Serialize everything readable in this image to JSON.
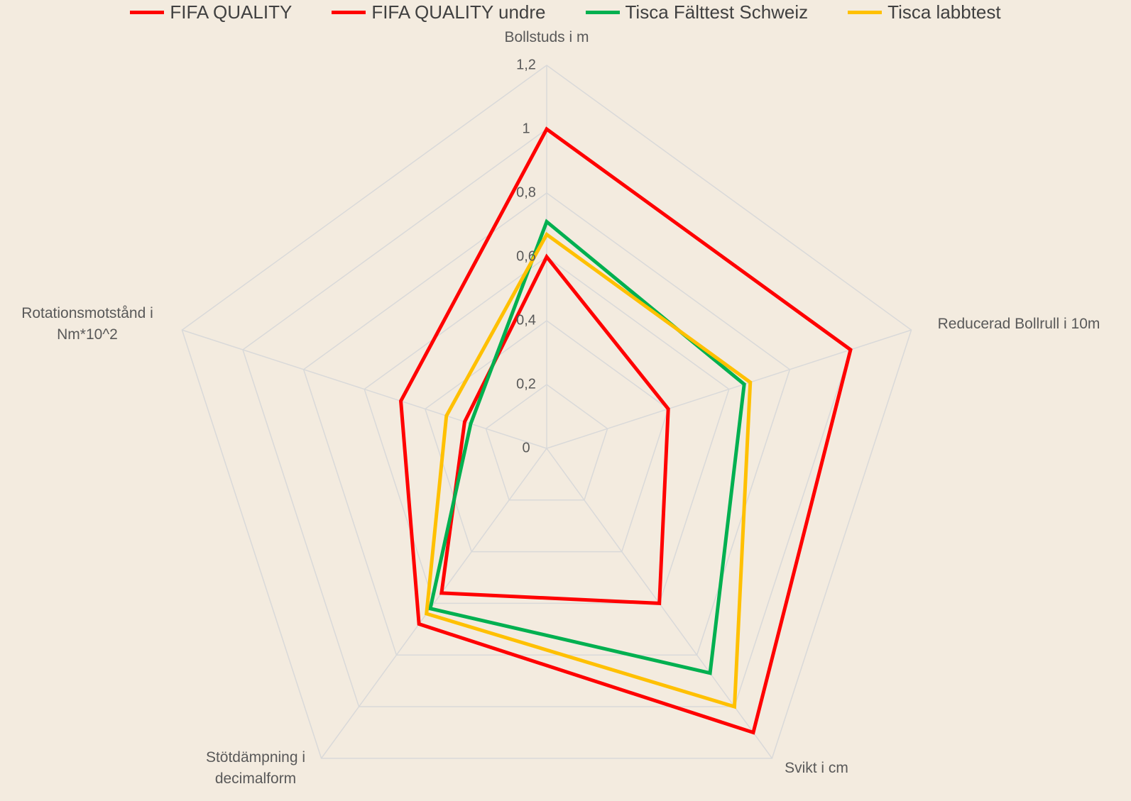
{
  "chart_data": {
    "type": "radar",
    "categories": [
      "Bollstuds i m",
      "Reducerad Bollrull i 10m",
      "Svikt i cm",
      "Stötdämpning i decimalform",
      "Rotationsmotstånd i Nm*10^2"
    ],
    "series": [
      {
        "name": "FIFA QUALITY",
        "color": "#ff0000",
        "values": [
          1.0,
          1.0,
          1.1,
          0.68,
          0.48
        ]
      },
      {
        "name": "FIFA QUALITY undre",
        "color": "#ff0000",
        "values": [
          0.6,
          0.4,
          0.6,
          0.56,
          0.27
        ]
      },
      {
        "name": "Tisca Fälttest Schweiz",
        "color": "#00b050",
        "values": [
          0.71,
          0.65,
          0.87,
          0.62,
          0.25
        ]
      },
      {
        "name": "Tisca labbtest",
        "color": "#ffc000",
        "values": [
          0.67,
          0.67,
          1.0,
          0.64,
          0.33
        ]
      }
    ],
    "ylim": [
      0,
      1.2
    ],
    "yticks": [
      0,
      {
        "value": 0.2,
        "label": "0,2"
      },
      {
        "value": 0.4,
        "label": "0,4"
      },
      {
        "value": 0.6,
        "label": "0,6"
      },
      {
        "value": 0.8,
        "label": "0,8"
      },
      1,
      {
        "value": 1.2,
        "label": "1,2"
      }
    ],
    "grid": true,
    "legend": "top"
  }
}
